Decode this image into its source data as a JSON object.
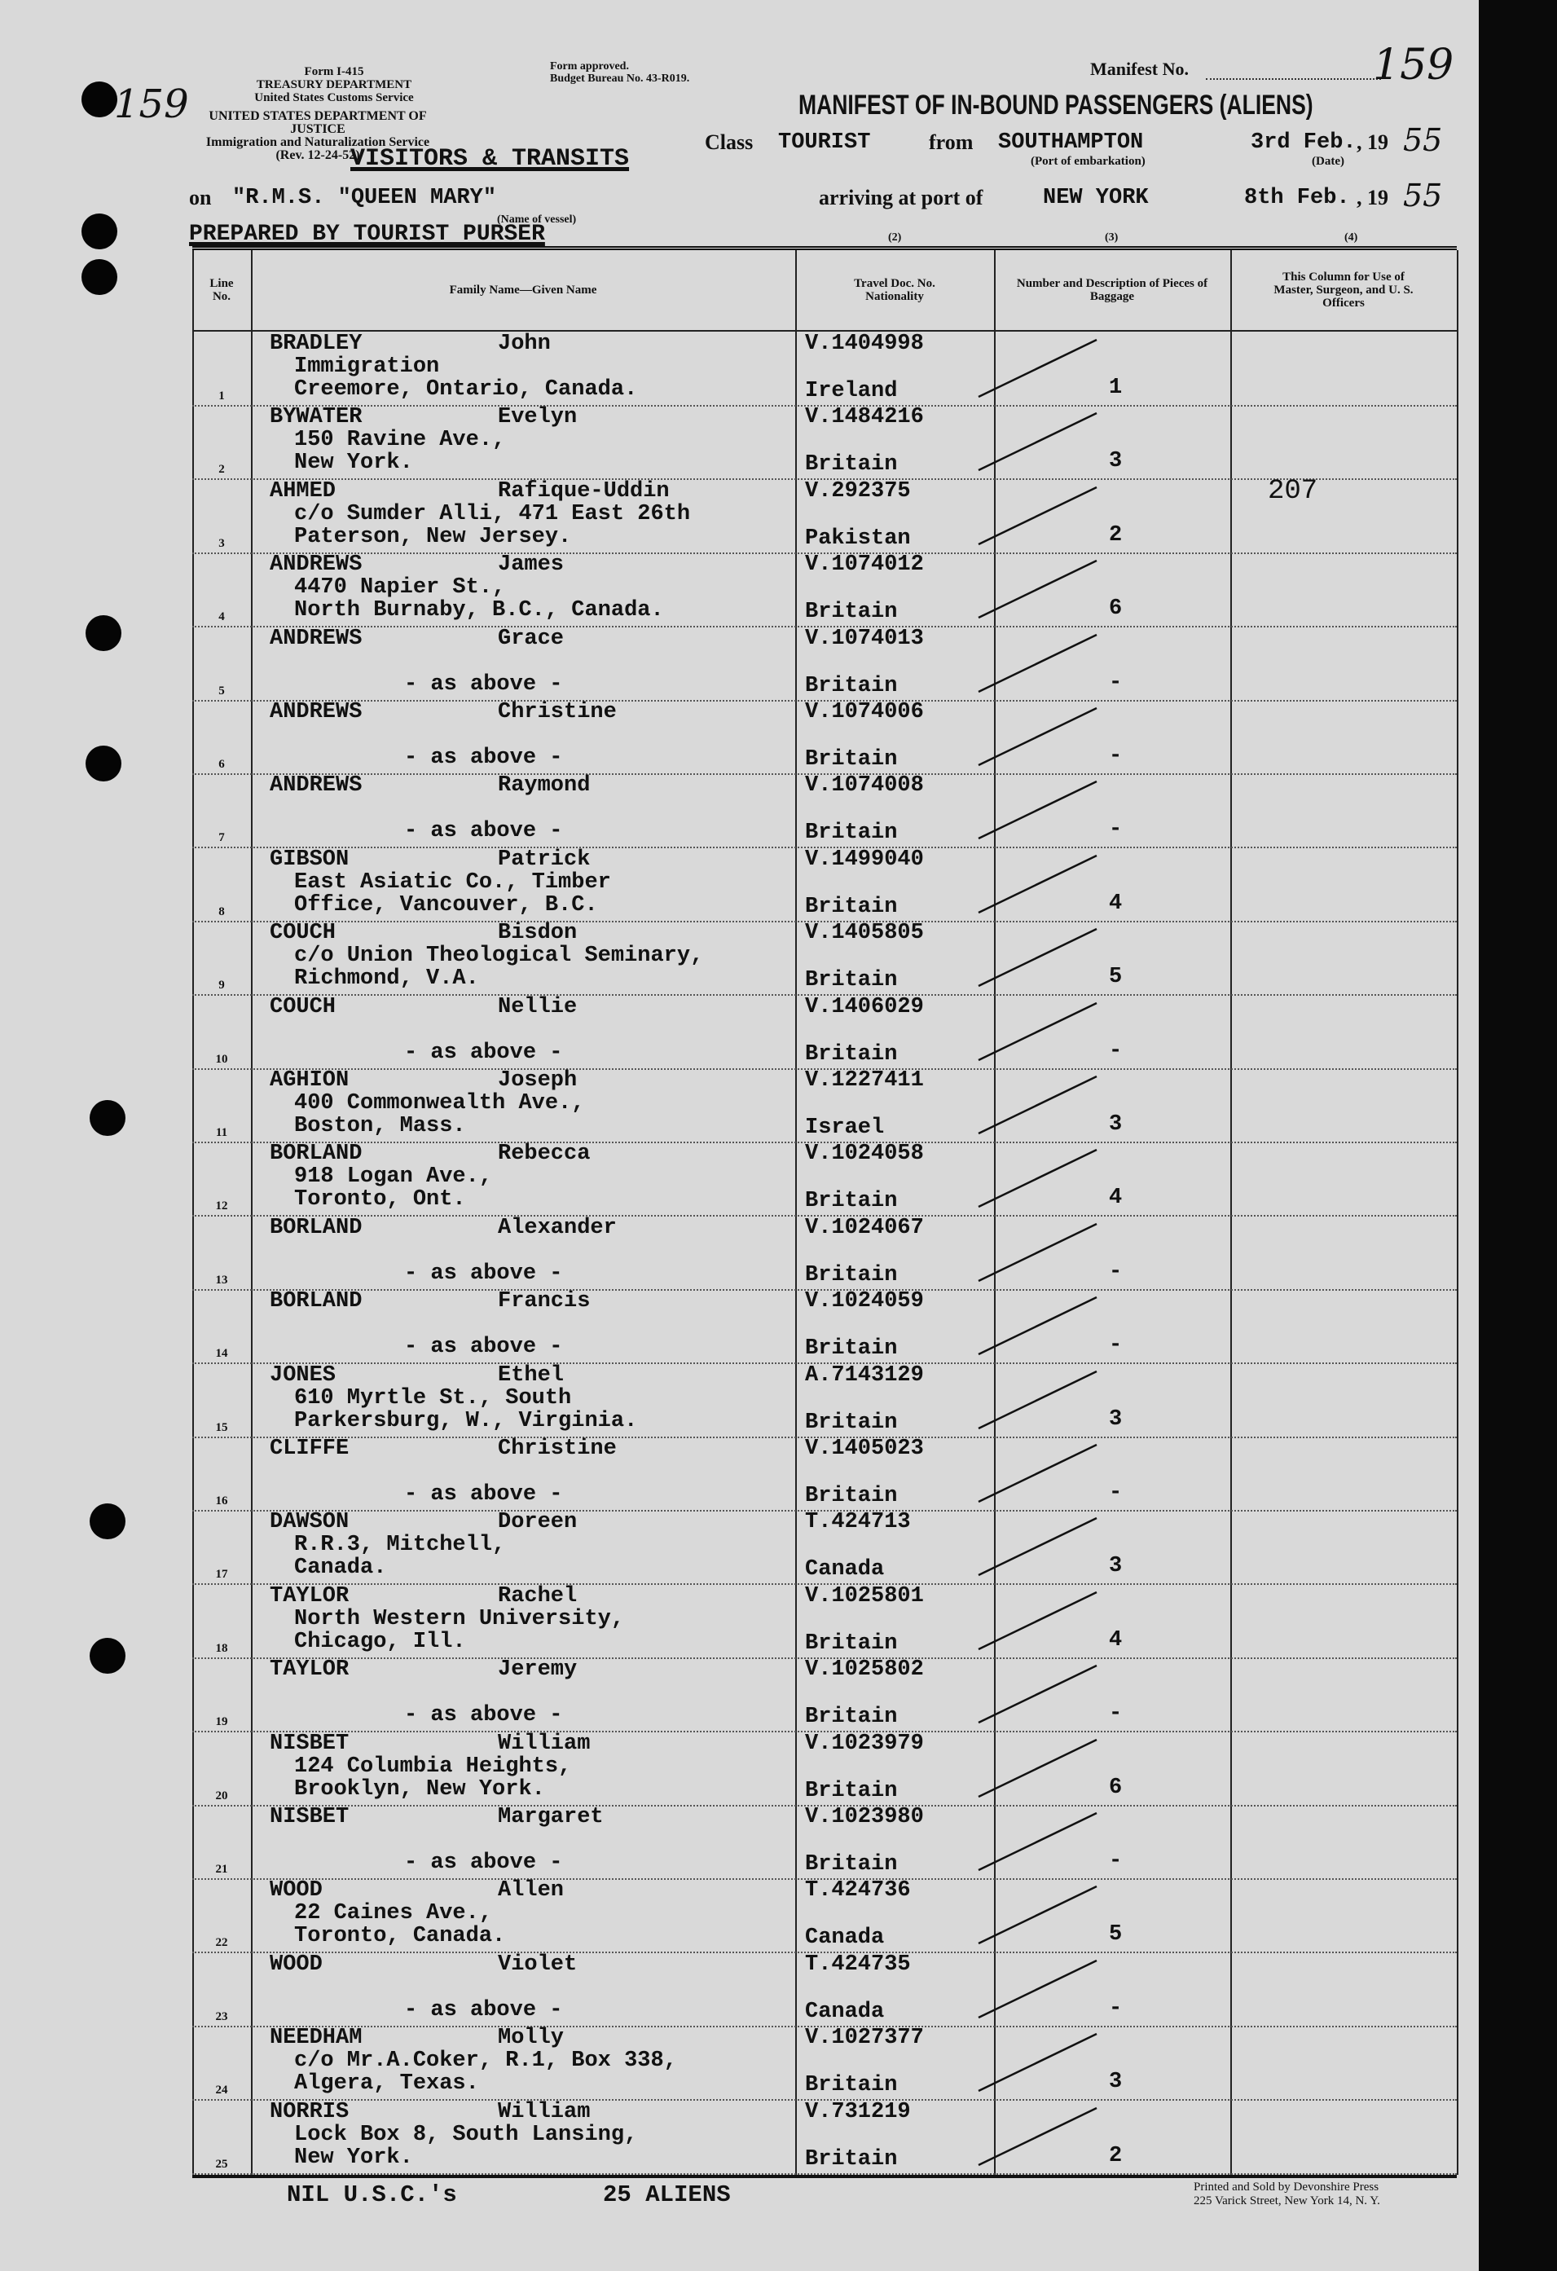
{
  "header": {
    "form_no": "Form I-415",
    "treasury": "TREASURY DEPARTMENT",
    "customs": "United States Customs Service",
    "justice": "UNITED STATES DEPARTMENT OF JUSTICE",
    "ins": "Immigration and Naturalization Service",
    "rev": "(Rev. 12-24-52)",
    "form_approved": "Form approved.",
    "budget": "Budget Bureau No. 43-R019.",
    "manifest_no_label": "Manifest No.",
    "manifest_no": "159",
    "title": "MANIFEST OF IN-BOUND PASSENGERS (ALIENS)",
    "stamp": "VISITORS & TRANSITS",
    "class_label": "Class",
    "class_value": "TOURIST",
    "from_label": "from",
    "from_value": "SOUTHAMPTON",
    "port_caption": "(Port of embarkation)",
    "dep_date": "3rd Feb.",
    "date_caption": "(Date)",
    "year_prefix": ", 19",
    "dep_year": "55",
    "on_label": "on",
    "vessel": "\"R.M.S. \"QUEEN MARY\"",
    "vessel_caption": "(Name of vessel)",
    "arriving_label": "arriving at port of",
    "arrival_port": "NEW YORK",
    "arr_date": "8th Feb.",
    "arr_year": "55",
    "prepared_by": "PREPARED BY TOURIST PURSER",
    "margin_note": "159"
  },
  "columns": {
    "line": "Line No.",
    "name": "Family Name—Given Name",
    "doc_num": "(2)",
    "doc": "Travel Doc. No. Nationality",
    "bag_num": "(3)",
    "bag": "Number and Description of Pieces of Baggage",
    "off_num": "(4)",
    "off": "This Column for Use of Master, Surgeon, and U. S. Officers"
  },
  "rows": [
    {
      "line": "1",
      "family": "BRADLEY",
      "given": "John",
      "addr1": "Immigration",
      "addr2": "Creemore, Ontario, Canada.",
      "doc": "V.1404998",
      "nat": "Ireland",
      "bag": "1"
    },
    {
      "line": "2",
      "family": "BYWATER",
      "given": "Evelyn",
      "addr1": "150 Ravine Ave.,",
      "addr2": "New York.",
      "doc": "V.1484216",
      "nat": "Britain",
      "bag": "3"
    },
    {
      "line": "3",
      "family": "AHMED",
      "given": "Rafique-Uddin",
      "addr1": "c/o Sumder Alli, 471 East 26th",
      "addr2": "Paterson, New Jersey.",
      "doc": "V.292375",
      "nat": "Pakistan",
      "bag": "2",
      "officer": "207"
    },
    {
      "line": "4",
      "family": "ANDREWS",
      "given": "James",
      "addr1": "4470 Napier St.,",
      "addr2": "North Burnaby, B.C., Canada.",
      "doc": "V.1074012",
      "nat": "Britain",
      "bag": "6"
    },
    {
      "line": "5",
      "family": "ANDREWS",
      "given": "Grace",
      "asabove": "- as above -",
      "doc": "V.1074013",
      "nat": "Britain",
      "bag": "-"
    },
    {
      "line": "6",
      "family": "ANDREWS",
      "given": "Christine",
      "asabove": "- as above -",
      "doc": "V.1074006",
      "nat": "Britain",
      "bag": "-"
    },
    {
      "line": "7",
      "family": "ANDREWS",
      "given": "Raymond",
      "asabove": "- as above -",
      "doc": "V.1074008",
      "nat": "Britain",
      "bag": "-"
    },
    {
      "line": "8",
      "family": "GIBSON",
      "given": "Patrick",
      "addr1": "East Asiatic Co., Timber",
      "addr2": "Office, Vancouver, B.C.",
      "doc": "V.1499040",
      "nat": "Britain",
      "bag": "4"
    },
    {
      "line": "9",
      "family": "COUCH",
      "given": "Bisdon",
      "addr1": "c/o Union Theological Seminary,",
      "addr2": "Richmond, V.A.",
      "doc": "V.1405805",
      "nat": "Britain",
      "bag": "5"
    },
    {
      "line": "10",
      "family": "COUCH",
      "given": "Nellie",
      "asabove": "- as above -",
      "doc": "V.1406029",
      "nat": "Britain",
      "bag": "-"
    },
    {
      "line": "11",
      "family": "AGHION",
      "given": "Joseph",
      "addr1": "400 Commonwealth Ave.,",
      "addr2": "Boston, Mass.",
      "doc": "V.1227411",
      "nat": "Israel",
      "bag": "3"
    },
    {
      "line": "12",
      "family": "BORLAND",
      "given": "Rebecca",
      "addr1": "918 Logan Ave.,",
      "addr2": "Toronto, Ont.",
      "doc": "V.1024058",
      "nat": "Britain",
      "bag": "4"
    },
    {
      "line": "13",
      "family": "BORLAND",
      "given": "Alexander",
      "asabove": "- as above -",
      "doc": "V.1024067",
      "nat": "Britain",
      "bag": "-"
    },
    {
      "line": "14",
      "family": "BORLAND",
      "given": "Francis",
      "asabove": "- as above -",
      "doc": "V.1024059",
      "nat": "Britain",
      "bag": "-"
    },
    {
      "line": "15",
      "family": "JONES",
      "given": "Ethel",
      "addr1": "610 Myrtle St., South",
      "addr2": "Parkersburg, W., Virginia.",
      "doc": "A.7143129",
      "nat": "Britain",
      "bag": "3"
    },
    {
      "line": "16",
      "family": "CLIFFE",
      "given": "Christine",
      "asabove": "- as above -",
      "doc": "V.1405023",
      "nat": "Britain",
      "bag": "-"
    },
    {
      "line": "17",
      "family": "DAWSON",
      "given": "Doreen",
      "addr1": "R.R.3, Mitchell,",
      "addr2": "Canada.",
      "doc": "T.424713",
      "nat": "Canada",
      "bag": "3"
    },
    {
      "line": "18",
      "family": "TAYLOR",
      "given": "Rachel",
      "addr1": "North Western University,",
      "addr2": "Chicago, Ill.",
      "doc": "V.1025801",
      "nat": "Britain",
      "bag": "4"
    },
    {
      "line": "19",
      "family": "TAYLOR",
      "given": "Jeremy",
      "asabove": "- as above -",
      "doc": "V.1025802",
      "nat": "Britain",
      "bag": "-"
    },
    {
      "line": "20",
      "family": "NISBET",
      "given": "William",
      "addr1": "124 Columbia Heights,",
      "addr2": "Brooklyn, New York.",
      "doc": "V.1023979",
      "nat": "Britain",
      "bag": "6"
    },
    {
      "line": "21",
      "family": "NISBET",
      "given": "Margaret",
      "asabove": "- as above -",
      "doc": "V.1023980",
      "nat": "Britain",
      "bag": "-"
    },
    {
      "line": "22",
      "family": "WOOD",
      "given": "Allen",
      "addr1": "22 Caines Ave.,",
      "addr2": "Toronto, Canada.",
      "doc": "T.424736",
      "nat": "Canada",
      "bag": "5"
    },
    {
      "line": "23",
      "family": "WOOD",
      "given": "Violet",
      "asabove": "- as above -",
      "doc": "T.424735",
      "nat": "Canada",
      "bag": "-"
    },
    {
      "line": "24",
      "family": "NEEDHAM",
      "given": "Molly",
      "addr1": "c/o Mr.A.Coker, R.1, Box 338,",
      "addr2": "Algera, Texas.",
      "doc": "V.1027377",
      "nat": "Britain",
      "bag": "3"
    },
    {
      "line": "25",
      "family": "NORRIS",
      "given": "William",
      "addr1": "Lock Box 8, South Lansing,",
      "addr2": "New York.",
      "doc": "V.731219",
      "nat": "Britain",
      "bag": "2"
    }
  ],
  "footer": {
    "usc": "NIL U.S.C.'s",
    "aliens": "25 ALIENS",
    "printer1": "Printed and Sold by Devonshire Press",
    "printer2": "225 Varick Street, New York 14, N. Y."
  }
}
